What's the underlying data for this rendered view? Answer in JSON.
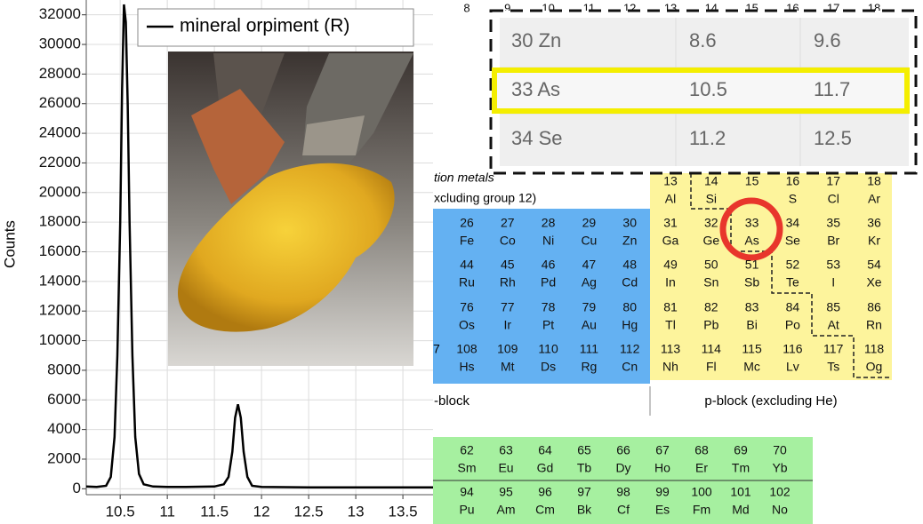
{
  "chart_data": {
    "type": "line",
    "y_label": "Counts",
    "x": [
      10.14,
      10.25,
      10.35,
      10.4,
      10.44,
      10.47,
      10.5,
      10.52,
      10.54,
      10.56,
      10.58,
      10.6,
      10.63,
      10.66,
      10.7,
      10.75,
      10.85,
      11.0,
      11.2,
      11.5,
      11.6,
      11.65,
      11.69,
      11.72,
      11.75,
      11.78,
      11.81,
      11.85,
      11.9,
      12.0,
      12.5,
      13.0,
      13.5,
      13.82
    ],
    "series": [
      {
        "name": "mineral orpiment (R)",
        "color": "#000000",
        "values": [
          150,
          120,
          200,
          800,
          3500,
          9000,
          18000,
          27000,
          32700,
          31500,
          26000,
          18000,
          9000,
          3500,
          1000,
          300,
          150,
          120,
          130,
          150,
          300,
          800,
          2500,
          4800,
          5700,
          4800,
          2500,
          800,
          200,
          120,
          100,
          100,
          100,
          100
        ]
      }
    ],
    "xlim": [
      10.14,
      13.82
    ],
    "ylim": [
      -400,
      33000
    ],
    "xticks": [
      10.5,
      11,
      11.5,
      12,
      12.5,
      13,
      13.5
    ],
    "yticks": [
      0,
      2000,
      4000,
      6000,
      8000,
      10000,
      12000,
      14000,
      16000,
      18000,
      20000,
      22000,
      24000,
      26000,
      28000,
      30000,
      32000
    ],
    "grid": true
  },
  "table": {
    "rows": [
      [
        "30 Zn",
        "8.6",
        "9.6"
      ],
      [
        "33 As",
        "10.5",
        "11.7"
      ],
      [
        "34 Se",
        "11.2",
        "12.5"
      ]
    ]
  },
  "periodic": {
    "groups": [
      8,
      9,
      10,
      11,
      12,
      13,
      14,
      15,
      16,
      17,
      18
    ],
    "heading_1": "tion metals",
    "heading_2": "xcluding group 12)",
    "cut_label": "7",
    "p_top": [
      {
        "number": 13,
        "symbol": "Al"
      },
      {
        "number": 14,
        "symbol": "Si"
      },
      {
        "number": 15
      },
      {
        "number": 16,
        "symbol": "S"
      },
      {
        "number": 17,
        "symbol": "Cl"
      },
      {
        "number": 18,
        "symbol": "Ar"
      }
    ],
    "rows": [
      [
        {
          "number": 26,
          "symbol": "Fe"
        },
        {
          "number": 27,
          "symbol": "Co"
        },
        {
          "number": 28,
          "symbol": "Ni"
        },
        {
          "number": 29,
          "symbol": "Cu"
        },
        {
          "number": 30,
          "symbol": "Zn"
        },
        {
          "number": 31,
          "symbol": "Ga"
        },
        {
          "number": 32,
          "symbol": "Ge"
        },
        {
          "number": 33,
          "symbol": "As"
        },
        {
          "number": 34,
          "symbol": "Se"
        },
        {
          "number": 35,
          "symbol": "Br"
        },
        {
          "number": 36,
          "symbol": "Kr"
        }
      ],
      [
        {
          "number": 44,
          "symbol": "Ru"
        },
        {
          "number": 45,
          "symbol": "Rh"
        },
        {
          "number": 46,
          "symbol": "Pd"
        },
        {
          "number": 47,
          "symbol": "Ag"
        },
        {
          "number": 48,
          "symbol": "Cd"
        },
        {
          "number": 49,
          "symbol": "In"
        },
        {
          "number": 50,
          "symbol": "Sn"
        },
        {
          "number": 51,
          "symbol": "Sb"
        },
        {
          "number": 52,
          "symbol": "Te"
        },
        {
          "number": 53,
          "symbol": "I"
        },
        {
          "number": 54,
          "symbol": "Xe"
        }
      ],
      [
        {
          "number": 76,
          "symbol": "Os"
        },
        {
          "number": 77,
          "symbol": "Ir"
        },
        {
          "number": 78,
          "symbol": "Pt"
        },
        {
          "number": 79,
          "symbol": "Au"
        },
        {
          "number": 80,
          "symbol": "Hg"
        },
        {
          "number": 81,
          "symbol": "Tl"
        },
        {
          "number": 82,
          "symbol": "Pb"
        },
        {
          "number": 83,
          "symbol": "Bi"
        },
        {
          "number": 84,
          "symbol": "Po"
        },
        {
          "number": 85,
          "symbol": "At"
        },
        {
          "number": 86,
          "symbol": "Rn"
        }
      ],
      [
        {
          "number": 108,
          "symbol": "Hs"
        },
        {
          "number": 109,
          "symbol": "Mt"
        },
        {
          "number": 110,
          "symbol": "Ds"
        },
        {
          "number": 111,
          "symbol": "Rg"
        },
        {
          "number": 112,
          "symbol": "Cn"
        },
        {
          "number": 113,
          "symbol": "Nh"
        },
        {
          "number": 114,
          "symbol": "Fl"
        },
        {
          "number": 115,
          "symbol": "Mc"
        },
        {
          "number": 116,
          "symbol": "Lv"
        },
        {
          "number": 117,
          "symbol": "Ts"
        },
        {
          "number": 118,
          "symbol": "Og"
        }
      ]
    ],
    "d_block": "-block",
    "p_block": "p-block (excluding He)",
    "f_rows": [
      [
        {
          "number": 62,
          "symbol": "Sm"
        },
        {
          "number": 63,
          "symbol": "Eu"
        },
        {
          "number": 64,
          "symbol": "Gd"
        },
        {
          "number": 65,
          "symbol": "Tb"
        },
        {
          "number": 66,
          "symbol": "Dy"
        },
        {
          "number": 67,
          "symbol": "Ho"
        },
        {
          "number": 68,
          "symbol": "Er"
        },
        {
          "number": 69,
          "symbol": "Tm"
        },
        {
          "number": 70,
          "symbol": "Yb"
        }
      ],
      [
        {
          "number": 94,
          "symbol": "Pu"
        },
        {
          "number": 95,
          "symbol": "Am"
        },
        {
          "number": 96,
          "symbol": "Cm"
        },
        {
          "number": 97,
          "symbol": "Bk"
        },
        {
          "number": 98,
          "symbol": "Cf"
        },
        {
          "number": 99,
          "symbol": "Es"
        },
        {
          "number": 100,
          "symbol": "Fm"
        },
        {
          "number": 101,
          "symbol": "Md"
        },
        {
          "number": 102,
          "symbol": "No"
        }
      ]
    ]
  }
}
